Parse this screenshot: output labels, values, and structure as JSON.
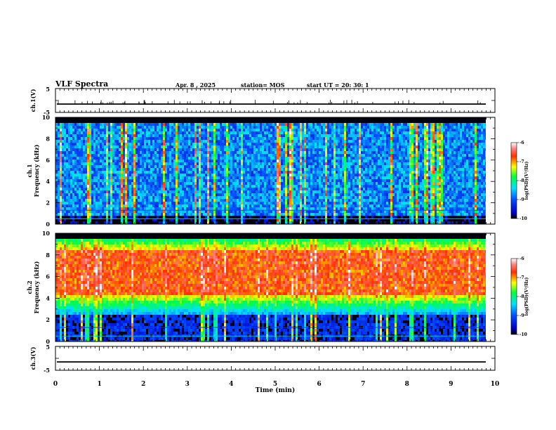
{
  "header": {
    "title": "VLF Spectra",
    "date": "Apr. 8 , 2025",
    "station": "station= MOS",
    "start": "start  UT =   20: 30: 1"
  },
  "chart_data": [
    {
      "type": "line",
      "panel": "ch1-voltage",
      "ylabel": "ch.1(V)",
      "ylim": [
        -5,
        5
      ],
      "yticks": [
        "5",
        "-5"
      ],
      "series": [
        {
          "values_description_level": 0
        }
      ]
    },
    {
      "type": "heatmap",
      "panel": "ch1-spectrogram",
      "ylabel": "ch.1\nFrequency (kHz)",
      "ylabel_lines": [
        "ch.1",
        "Frequency (kHz)"
      ],
      "ylim": [
        0,
        10
      ],
      "yticks": [
        "0",
        "2",
        "4",
        "6",
        "8",
        "10"
      ],
      "colorbar": {
        "label": "log(PSD)(V²/Hz)",
        "range": [
          -10,
          -6
        ],
        "ticks": [
          "-6",
          "-7",
          "-8",
          "-9",
          "-10"
        ]
      }
    },
    {
      "type": "heatmap",
      "panel": "ch2-spectrogram",
      "ylabel_lines": [
        "ch.2",
        "Frequency (kHz)"
      ],
      "ylim": [
        0,
        10
      ],
      "yticks": [
        "0",
        "2",
        "4",
        "6",
        "8",
        "10"
      ],
      "colorbar": {
        "label": "log(PSD)(V²/Hz)",
        "range": [
          -10,
          -6
        ],
        "ticks": [
          "-6",
          "-7",
          "-8",
          "-9",
          "-10"
        ]
      }
    },
    {
      "type": "line",
      "panel": "ch3-voltage",
      "ylabel": "ch.3(V)",
      "ylim": [
        -5,
        5
      ],
      "yticks": [
        "5",
        "-5"
      ],
      "series": [
        {
          "values_description_level": 0
        }
      ]
    }
  ],
  "xaxis": {
    "label": "Time  (min)",
    "range": [
      0,
      10
    ],
    "ticks": [
      "0",
      "1",
      "2",
      "3",
      "4",
      "5",
      "6",
      "7",
      "8",
      "9",
      "10"
    ]
  },
  "colorbar_label": "log(PSD)(V²/Hz)",
  "colorbar_label_parts": {
    "pre": "log(PSD)(V",
    "sup": "2",
    "post": "/Hz)"
  }
}
